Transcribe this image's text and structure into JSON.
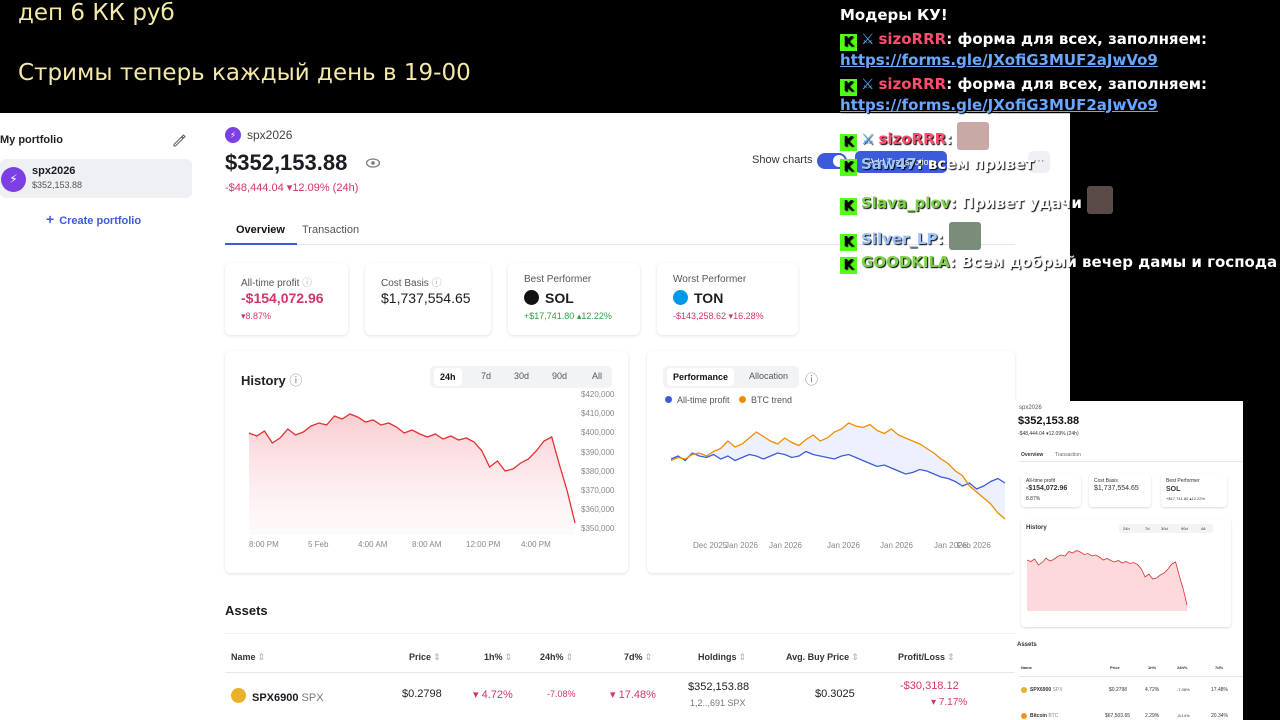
{
  "overlay": {
    "line1": "деп 6 КК руб",
    "line2": "Стримы теперь каждый день в 19-00"
  },
  "sidebar": {
    "heading": "My portfolio",
    "portfolio_name": "spx2026",
    "portfolio_value": "$352,153.88",
    "create_label": "Create portfolio"
  },
  "header": {
    "portfolio_name": "spx2026",
    "total": "$352,153.88",
    "change_amount": "-$48,444.04",
    "change_pct": "12.09% (24h)",
    "show_charts_label": "Show charts",
    "add_transaction_label": "Add Transaction",
    "more_label": "···"
  },
  "tabs": [
    "Overview",
    "Transaction"
  ],
  "stats": {
    "all_time_profit": {
      "label": "All-time profit",
      "value": "-$154,072.96",
      "sub": "8.87%"
    },
    "cost_basis": {
      "label": "Cost Basis",
      "value": "$1,737,554.65"
    },
    "best": {
      "label": "Best Performer",
      "coin": "SOL",
      "amount": "+$17,741.80",
      "pct": "12.22%"
    },
    "worst": {
      "label": "Worst Performer",
      "coin": "TON",
      "amount": "-$143,258.62",
      "pct": "16.28%"
    }
  },
  "history": {
    "title": "History",
    "ranges": [
      "24h",
      "7d",
      "30d",
      "90d",
      "All"
    ],
    "active_range": "24h"
  },
  "performance": {
    "tabs": [
      "Performance",
      "Allocation"
    ],
    "legend": [
      "All-time profit",
      "BTC trend"
    ]
  },
  "chart_data": [
    {
      "type": "area",
      "x_ticks": [
        "8:00 PM",
        "5 Feb",
        "4:00 AM",
        "8:00 AM",
        "12:00 PM",
        "4:00 PM"
      ],
      "y_ticks": [
        "$420,000",
        "$410,000",
        "$400,000",
        "$390,000",
        "$380,000",
        "$370,000",
        "$360,000",
        "$350,000"
      ],
      "ylim": [
        350000,
        420000
      ],
      "values": [
        401000,
        399500,
        402000,
        396000,
        398500,
        403000,
        400000,
        401500,
        404500,
        406000,
        405000,
        409500,
        408000,
        410500,
        409000,
        406500,
        407500,
        405000,
        406000,
        404000,
        401000,
        402500,
        400500,
        399000,
        400500,
        398000,
        399500,
        397500,
        398500,
        396500,
        392000,
        384000,
        387000,
        382000,
        383000,
        386000,
        388000,
        392000,
        397000,
        399000,
        385000,
        372000,
        356000
      ],
      "color": "#e03131"
    },
    {
      "type": "line",
      "x_ticks": [
        "Dec 2025",
        "Jan 2026",
        "Jan 2026",
        "Jan 2026",
        "Jan 2026",
        "Jan 2026",
        "Feb 2026"
      ],
      "series": [
        {
          "name": "All-time profit",
          "color": "#3b5bdb",
          "values": [
            48,
            50,
            47,
            52,
            50,
            49,
            51,
            48,
            50,
            47,
            49,
            51,
            50,
            48,
            50,
            52,
            51,
            49,
            50,
            53,
            51,
            50,
            49,
            48,
            50,
            51,
            49,
            47,
            45,
            43,
            44,
            42,
            40,
            38,
            39,
            41,
            40,
            38,
            36,
            35,
            33,
            30,
            32,
            28,
            30,
            33,
            35,
            32
          ]
        },
        {
          "name": "BTC trend",
          "color": "#f08c00",
          "values": [
            47,
            49,
            48,
            51,
            52,
            50,
            53,
            55,
            60,
            56,
            58,
            62,
            66,
            63,
            60,
            58,
            62,
            59,
            57,
            61,
            64,
            60,
            62,
            66,
            68,
            72,
            70,
            69,
            71,
            67,
            65,
            68,
            64,
            62,
            60,
            58,
            55,
            52,
            48,
            45,
            40,
            37,
            30,
            26,
            22,
            18,
            12,
            8
          ]
        }
      ]
    }
  ],
  "assets": {
    "title": "Assets",
    "columns": [
      "Name",
      "Price",
      "1h%",
      "24h%",
      "7d%",
      "Holdings",
      "Avg. Buy Price",
      "Profit/Loss"
    ],
    "rows": [
      {
        "name": "SPX6900",
        "ticker": "SPX",
        "price": "$0.2798",
        "h1": "4.72%",
        "h24": "-7.08%",
        "d7": "17.48%",
        "holdings_value": "$352,153.88",
        "holdings_qty": "1,2..,691 SPX",
        "avg_buy": "$0.3025",
        "pl_value": "-$30,318.12",
        "pl_pct": "7.17%"
      }
    ]
  },
  "chat": [
    {
      "user": "",
      "text": "Модеры КУ!"
    },
    {
      "user": "sizoRRR",
      "text": ": форма для всех, заполняем:",
      "link": "https://forms.gle/JXofiG3MUF2aJwVo9"
    },
    {
      "user": "sizoRRR",
      "text": ": форма для всех, заполняем:",
      "link": "https://forms.gle/JXofiG3MUF2aJwVo9"
    },
    {
      "user": "sizoRRR",
      "text": ":"
    },
    {
      "user": "Saw47",
      "text": ": всем привет"
    },
    {
      "user": "Slava_plov",
      "text": ": Привет удачи"
    },
    {
      "user": "Silver_LP",
      "text": ":"
    },
    {
      "user": "GOODKILA",
      "text": ": Всем добрый вечер дамы и господа"
    }
  ],
  "mini": {
    "portfolio_name": "spx2026",
    "total": "$352,153.88",
    "change": "-$48,444.04 ▾12.09% (24h)",
    "tabs": [
      "Overview",
      "Transaction"
    ],
    "stat1_label": "All-time profit",
    "stat1_value": "-$154,072.96",
    "stat1_sub": "8.87%",
    "stat2_label": "Cost Basis",
    "stat2_value": "$1,737,554.65",
    "stat3_label": "Best Performer",
    "stat3_value": "SOL",
    "stat3_sub": "+$17,741.80 ▴12.22%",
    "history": "History",
    "ranges": [
      "24h",
      "7d",
      "30d",
      "90d",
      "All"
    ],
    "assets": "Assets",
    "cols": [
      "Name",
      "Price",
      "1h%",
      "24h%",
      "7d%"
    ],
    "row1": [
      "SPX6900",
      "SPX",
      "$0.2798",
      "4.72%",
      "-7.08%",
      "17.48%"
    ],
    "row2": [
      "Bitcoin",
      "BTC",
      "$67,503.65",
      "2.29%",
      "-8.14%",
      "20.34%"
    ]
  }
}
